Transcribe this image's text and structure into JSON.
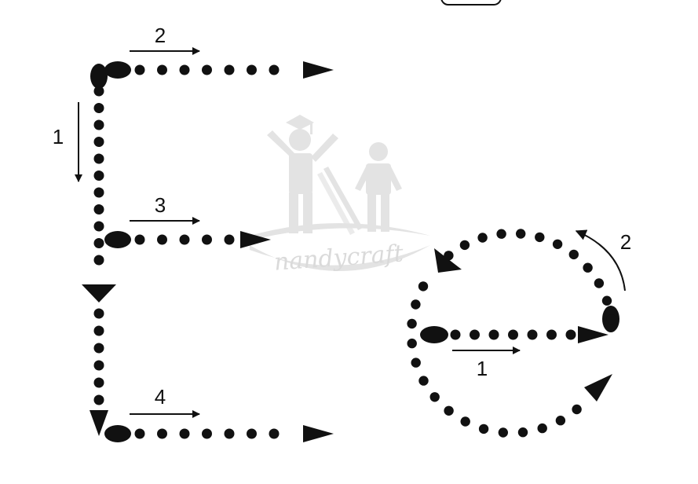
{
  "worksheet": {
    "letters": [
      {
        "letter": "E",
        "strokes": [
          {
            "number": "1",
            "direction": "down"
          },
          {
            "number": "2",
            "direction": "right"
          },
          {
            "number": "3",
            "direction": "right"
          },
          {
            "number": "4",
            "direction": "right"
          }
        ]
      },
      {
        "letter": "e",
        "strokes": [
          {
            "number": "1",
            "direction": "right"
          },
          {
            "number": "2",
            "direction": "counter-clockwise"
          }
        ]
      }
    ],
    "watermark": {
      "text": "nandycraft",
      "icon": "teacher-student-logo-icon"
    },
    "colors": {
      "ink": "#111111",
      "watermark": "#d9d9d9",
      "background": "#ffffff"
    }
  }
}
